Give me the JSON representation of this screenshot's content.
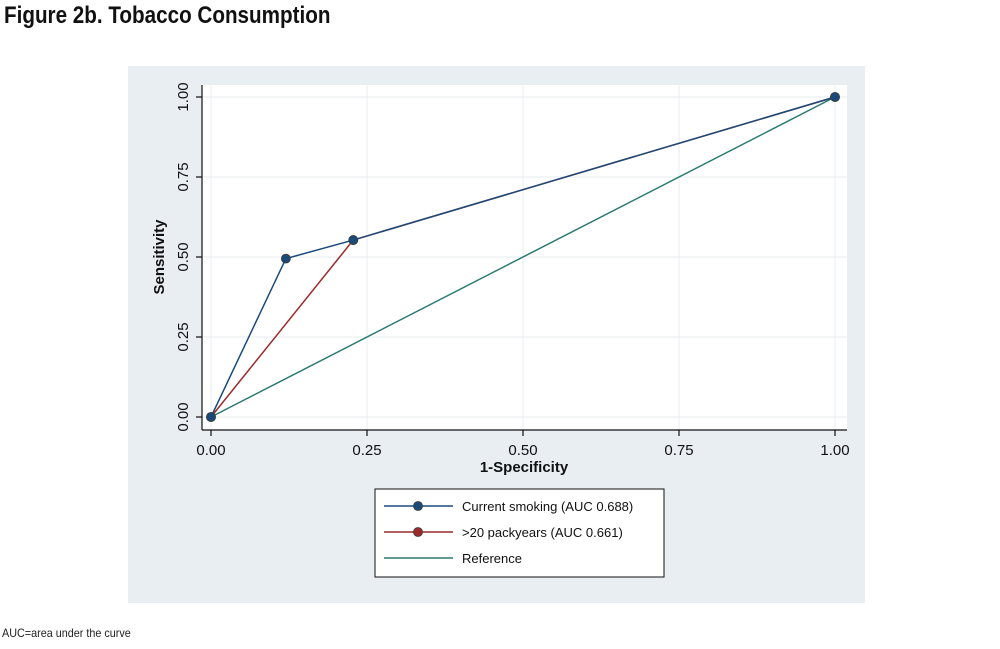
{
  "figure": {
    "title": "Figure 2b. Tobacco Consumption",
    "footnote": "AUC=area under the curve"
  },
  "colors": {
    "background_panel": "#e8eef2",
    "plot_area": "#ffffff",
    "gridline": "#e6ecef",
    "current_smoking": "#1b4a7a",
    "packyears": "#9b2a2a",
    "reference": "#2a7a72"
  },
  "chart_data": {
    "type": "line",
    "xlabel": "1-Specificity",
    "ylabel": "Sensitivity",
    "xlim": [
      0,
      1
    ],
    "ylim": [
      0,
      1
    ],
    "x_ticks": [
      "0.00",
      "0.25",
      "0.50",
      "0.75",
      "1.00"
    ],
    "y_ticks": [
      "0.00",
      "0.25",
      "0.50",
      "0.75",
      "1.00"
    ],
    "grid": true,
    "legend_placement": "bottom",
    "series": [
      {
        "name": "Current smoking (AUC 0.688)",
        "color": "#1b4a7a",
        "markers": true,
        "points": [
          [
            0,
            0
          ],
          [
            0.12,
            0.495
          ],
          [
            0.228,
            0.553
          ],
          [
            1,
            1
          ]
        ]
      },
      {
        "name": ">20 packyears (AUC 0.661)",
        "color": "#9b2a2a",
        "markers": true,
        "points": [
          [
            0,
            0
          ],
          [
            0.228,
            0.553
          ],
          [
            1,
            1
          ]
        ]
      },
      {
        "name": "Reference",
        "color": "#2a7a72",
        "markers": false,
        "points": [
          [
            0,
            0
          ],
          [
            1,
            1
          ]
        ]
      }
    ]
  }
}
